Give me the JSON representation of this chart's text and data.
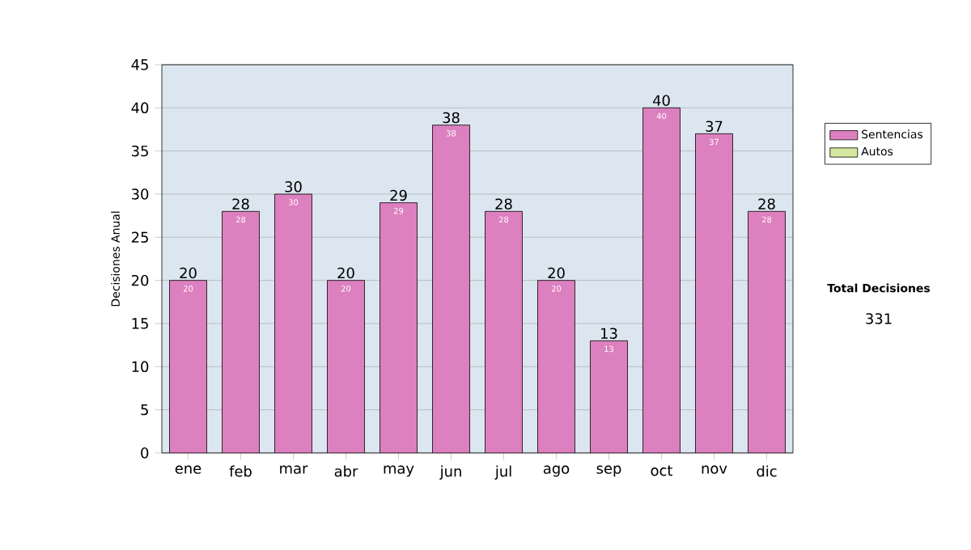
{
  "chart_data": {
    "type": "bar",
    "stacked": true,
    "ylabel": "Decisiones Anual",
    "categories": [
      "ene",
      "feb",
      "mar",
      "abr",
      "may",
      "jun",
      "jul",
      "ago",
      "sep",
      "oct",
      "nov",
      "dic"
    ],
    "series": [
      {
        "name": "Sentencias",
        "color": "#dd80bf",
        "values": [
          20,
          28,
          30,
          20,
          29,
          38,
          28,
          20,
          13,
          40,
          37,
          28
        ],
        "value_labels": [
          "20",
          "28",
          "30",
          "20",
          "29",
          "38",
          "28",
          "20",
          "13",
          "40",
          "37",
          "28"
        ]
      },
      {
        "name": "Autos",
        "color": "#d6e8a0",
        "values": [
          0,
          0,
          0,
          0,
          0,
          0,
          0,
          0,
          0,
          0,
          0,
          0
        ]
      }
    ],
    "totals": [
      "20",
      "28",
      "30",
      "20",
      "29",
      "38",
      "28",
      "20",
      "13",
      "40",
      "37",
      "28"
    ],
    "ylim": [
      0,
      45
    ],
    "yticks": [
      0,
      5,
      10,
      15,
      20,
      25,
      30,
      35,
      40,
      45
    ],
    "grid": "y",
    "legend": "right",
    "annotations": [
      "Total Decisiones",
      "331"
    ]
  }
}
